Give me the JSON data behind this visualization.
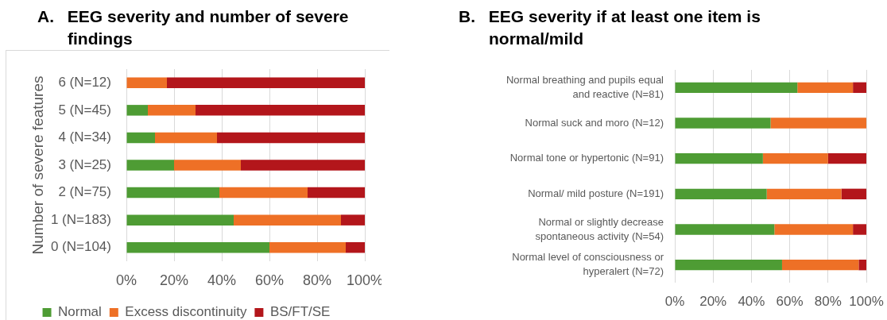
{
  "chart_data": [
    {
      "type": "bar",
      "orientation": "horizontal",
      "stacked": true,
      "title": "A. EEG severity and number of severe findings",
      "ylabel": "Number of severe features",
      "categories": [
        "6 (N=12)",
        "5 (N=45)",
        "4 (N=34)",
        "3 (N=25)",
        "2 (N=75)",
        "1 (N=183)",
        "0 (N=104)"
      ],
      "series": [
        {
          "name": "Normal",
          "color": "#4e9c34",
          "values": [
            0,
            9,
            12,
            20,
            39,
            45,
            60
          ]
        },
        {
          "name": "Excess discontinuity",
          "color": "#ee7026",
          "values": [
            17,
            20,
            26,
            28,
            37,
            45,
            32
          ]
        },
        {
          "name": "BS/FT/SE",
          "color": "#b3161b",
          "values": [
            83,
            71,
            62,
            52,
            24,
            10,
            8
          ]
        }
      ],
      "xlim": [
        0,
        100
      ],
      "xticks": [
        {
          "value": 0,
          "label": "0%"
        },
        {
          "value": 20,
          "label": "20%"
        },
        {
          "value": 40,
          "label": "40%"
        },
        {
          "value": 60,
          "label": "60%"
        },
        {
          "value": 80,
          "label": "80%"
        },
        {
          "value": 100,
          "label": "100%"
        }
      ],
      "grid": "x",
      "legend": "bottom"
    },
    {
      "type": "bar",
      "orientation": "horizontal",
      "stacked": true,
      "title": "B. EEG severity if at least one item is normal/mild",
      "categories": [
        "Normal breathing and pupils equal and reactive (N=81)",
        "Normal suck and moro (N=12)",
        "Normal tone or hypertonic (N=91)",
        "Normal/ mild posture (N=191)",
        "Normal or slightly decrease spontaneous activity (N=54)",
        "Normal level of consciousness or hyperalert (N=72)"
      ],
      "series": [
        {
          "color": "#4e9c34",
          "values": [
            64,
            50,
            46,
            48,
            52,
            56
          ]
        },
        {
          "color": "#ee7026",
          "values": [
            29,
            50,
            34,
            39,
            41,
            40
          ]
        },
        {
          "color": "#b3161b",
          "values": [
            7,
            0,
            20,
            13,
            7,
            4
          ]
        }
      ],
      "xlim": [
        0,
        100
      ],
      "xticks": [
        {
          "value": 0,
          "label": "0%"
        },
        {
          "value": 20,
          "label": "20%"
        },
        {
          "value": 40,
          "label": "40%"
        },
        {
          "value": 60,
          "label": "60%"
        },
        {
          "value": 80,
          "label": "80%"
        },
        {
          "value": 100,
          "label": "100%"
        }
      ],
      "grid": "x"
    }
  ]
}
